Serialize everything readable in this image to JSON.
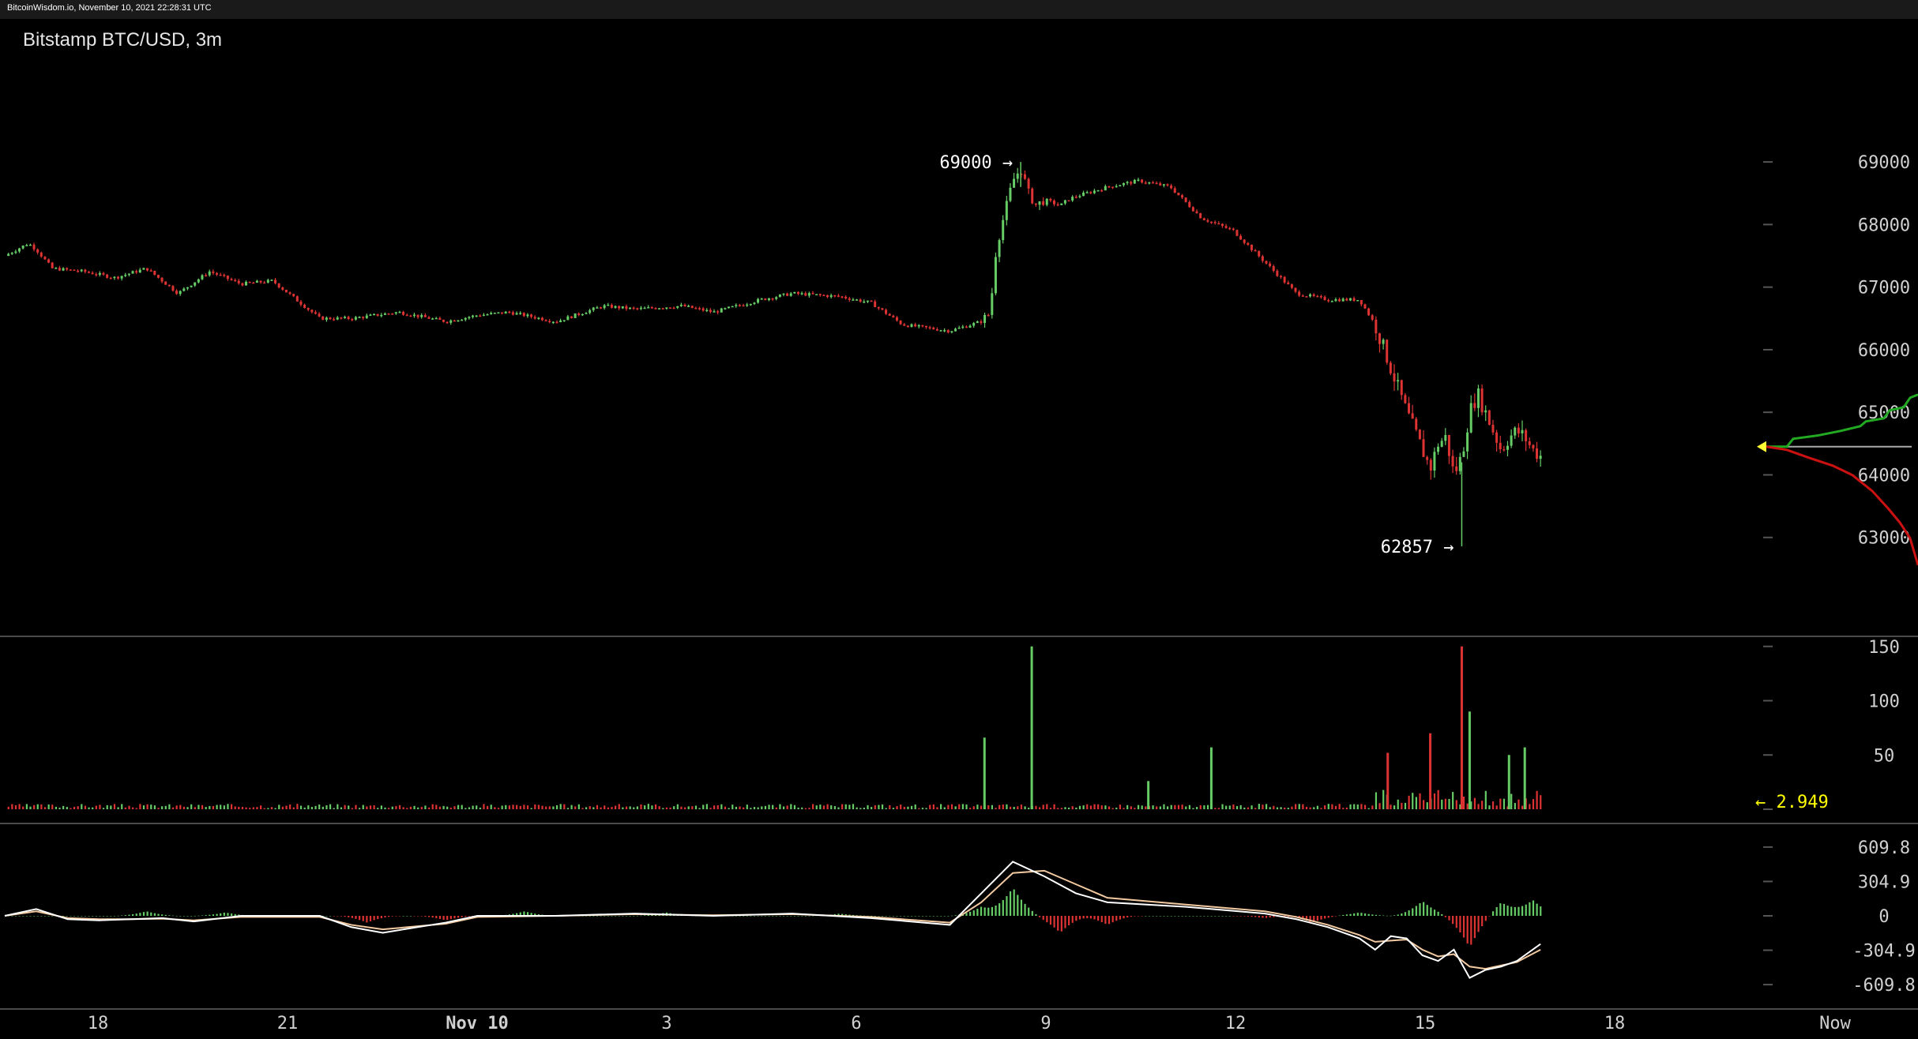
{
  "header": {
    "watermark": "BitcoinWisdom.io, November 10, 2021 22:28:31 UTC"
  },
  "chart_data": [
    {
      "type": "candlestick",
      "title": "Bitstamp BTC/USD, 3m",
      "x_ticks": [
        "18",
        "21",
        "Nov 10",
        "3",
        "6",
        "9",
        "12",
        "15",
        "18",
        "Now"
      ],
      "y_ticks": [
        69000,
        68000,
        67000,
        66000,
        65000,
        64000,
        63000
      ],
      "ylim": [
        62000,
        70200
      ],
      "annotations": [
        {
          "label": "69000 →",
          "value": 69000
        },
        {
          "label": "62857 →",
          "value": 62857
        }
      ],
      "path_x": [
        0.0,
        0.015,
        0.02,
        0.03,
        0.05,
        0.07,
        0.09,
        0.11,
        0.13,
        0.15,
        0.17,
        0.18,
        0.2,
        0.22,
        0.25,
        0.28,
        0.3,
        0.32,
        0.35,
        0.38,
        0.4,
        0.43,
        0.45,
        0.48,
        0.5,
        0.53,
        0.55,
        0.57,
        0.6,
        0.62,
        0.626,
        0.628,
        0.632,
        0.635,
        0.64,
        0.645,
        0.65,
        0.655,
        0.66,
        0.665,
        0.67,
        0.675,
        0.68,
        0.7,
        0.72,
        0.74,
        0.76,
        0.78,
        0.8,
        0.82,
        0.84,
        0.86,
        0.87,
        0.88,
        0.89,
        0.9,
        0.905,
        0.91,
        0.915,
        0.92,
        0.925,
        0.93,
        0.935,
        0.94,
        0.945,
        0.95,
        0.955,
        0.96,
        0.965,
        0.97,
        0.975
      ],
      "path_y": [
        67500,
        67700,
        67600,
        67300,
        67250,
        67150,
        67300,
        66900,
        67250,
        67050,
        67100,
        66900,
        66500,
        66500,
        66600,
        66450,
        66550,
        66600,
        66450,
        66700,
        66650,
        66700,
        66600,
        66800,
        66900,
        66850,
        66750,
        66400,
        66300,
        66450,
        66600,
        67400,
        67900,
        68200,
        68700,
        68900,
        68500,
        68300,
        68400,
        68350,
        68300,
        68400,
        68450,
        68600,
        68700,
        68600,
        68100,
        67900,
        67400,
        66900,
        66800,
        66800,
        66400,
        65700,
        65000,
        64400,
        64100,
        64500,
        64600,
        64000,
        64300,
        65000,
        65300,
        65000,
        64700,
        64400,
        64600,
        64700,
        64600,
        64400,
        64300
      ]
    },
    {
      "type": "bar",
      "title": "Volume",
      "y_ticks": [
        150,
        100,
        50,
        0
      ],
      "ylim": [
        0,
        160
      ],
      "current_value_label": "← 2.949",
      "spikes": [
        {
          "x": 0.622,
          "value": 66,
          "color": "green"
        },
        {
          "x": 0.652,
          "value": 150,
          "color": "green"
        },
        {
          "x": 0.726,
          "value": 26,
          "color": "green"
        },
        {
          "x": 0.766,
          "value": 57,
          "color": "green"
        },
        {
          "x": 0.878,
          "value": 52,
          "color": "red"
        },
        {
          "x": 0.905,
          "value": 70,
          "color": "red"
        },
        {
          "x": 0.925,
          "value": 150,
          "color": "red"
        },
        {
          "x": 0.93,
          "value": 90,
          "color": "green"
        },
        {
          "x": 0.955,
          "value": 50,
          "color": "green"
        },
        {
          "x": 0.965,
          "value": 57,
          "color": "green"
        }
      ]
    },
    {
      "type": "line",
      "title": "MACD",
      "y_ticks": [
        "609.8",
        "304.9",
        "0",
        "-304.9",
        "-609.8"
      ],
      "ylim": [
        -700,
        700
      ],
      "macd_x": [
        0.0,
        0.02,
        0.04,
        0.06,
        0.08,
        0.1,
        0.12,
        0.15,
        0.2,
        0.22,
        0.24,
        0.28,
        0.3,
        0.35,
        0.4,
        0.45,
        0.5,
        0.55,
        0.6,
        0.62,
        0.64,
        0.66,
        0.68,
        0.7,
        0.75,
        0.8,
        0.82,
        0.84,
        0.86,
        0.87,
        0.88,
        0.89,
        0.9,
        0.91,
        0.92,
        0.93,
        0.94,
        0.95,
        0.96,
        0.975
      ],
      "macd_y": [
        0,
        60,
        -30,
        -40,
        -30,
        -20,
        -50,
        0,
        0,
        -100,
        -150,
        -60,
        0,
        0,
        20,
        0,
        20,
        -20,
        -80,
        200,
        480,
        350,
        200,
        120,
        80,
        20,
        -30,
        -100,
        -200,
        -300,
        -180,
        -200,
        -350,
        -400,
        -300,
        -550,
        -480,
        -450,
        -400,
        -250
      ],
      "signal_y": [
        0,
        40,
        -20,
        -30,
        -30,
        -25,
        -40,
        -10,
        -10,
        -80,
        -120,
        -70,
        -10,
        0,
        15,
        5,
        15,
        -10,
        -60,
        120,
        380,
        400,
        280,
        160,
        100,
        40,
        -10,
        -80,
        -170,
        -230,
        -220,
        -210,
        -300,
        -360,
        -340,
        -450,
        -470,
        -440,
        -410,
        -300
      ],
      "histogram_x": [
        0.09,
        0.14,
        0.23,
        0.28,
        0.33,
        0.42,
        0.53,
        0.62,
        0.64,
        0.67,
        0.7,
        0.8,
        0.83,
        0.86,
        0.9,
        0.93,
        0.95,
        0.97
      ],
      "histogram_y": [
        40,
        30,
        -60,
        -40,
        40,
        30,
        20,
        80,
        250,
        -150,
        -80,
        -20,
        -60,
        30,
        130,
        -280,
        120,
        140
      ]
    }
  ],
  "depth_panel": {
    "colors": {
      "bids": "#22aa22",
      "asks": "#cc1111",
      "last_price": "#ffff33",
      "last_price_line": "#aaaaaa"
    },
    "current_price": 64450
  },
  "colors": {
    "up": "#66cc66",
    "down": "#dd3333",
    "background": "#000000",
    "divider": "#4a4a4a"
  }
}
